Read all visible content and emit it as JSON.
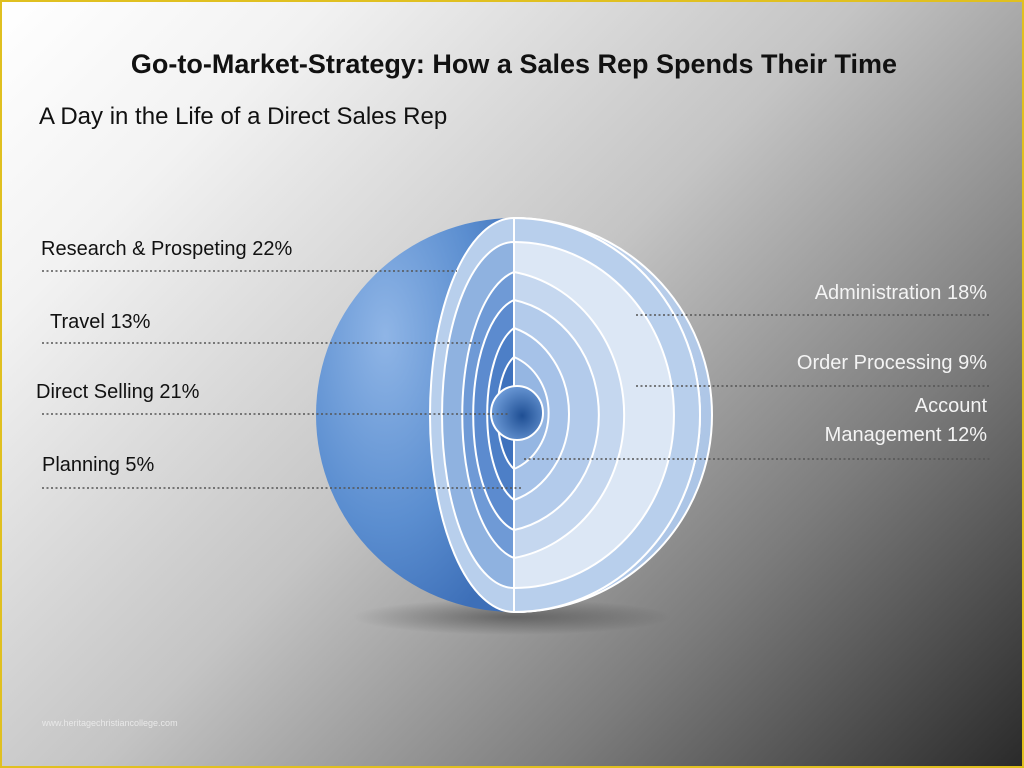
{
  "slide": {
    "title": "Go-to-Market-Strategy: How a Sales Rep Spends Their Time",
    "subtitle": "A Day in the Life of a Direct Sales Rep",
    "watermark": "www.heritagechristiancollege.com"
  },
  "segments_left": [
    {
      "label": "Research & Prospeting 22%"
    },
    {
      "label": "Travel 13%"
    },
    {
      "label": "Direct Selling 21%"
    },
    {
      "label": "Planning 5%"
    }
  ],
  "segments_right": [
    {
      "label": "Administration 18%"
    },
    {
      "label": "Order Processing 9%"
    },
    {
      "label_line1": "Account",
      "label_line2": "Management 12%"
    }
  ],
  "colors": {
    "sphere_outer": "#5b8ed0",
    "ring_dark": "#4a7ec6",
    "ring_light": "#dbe6f4",
    "leader_line": "#555555",
    "border": "#e0c020"
  }
}
